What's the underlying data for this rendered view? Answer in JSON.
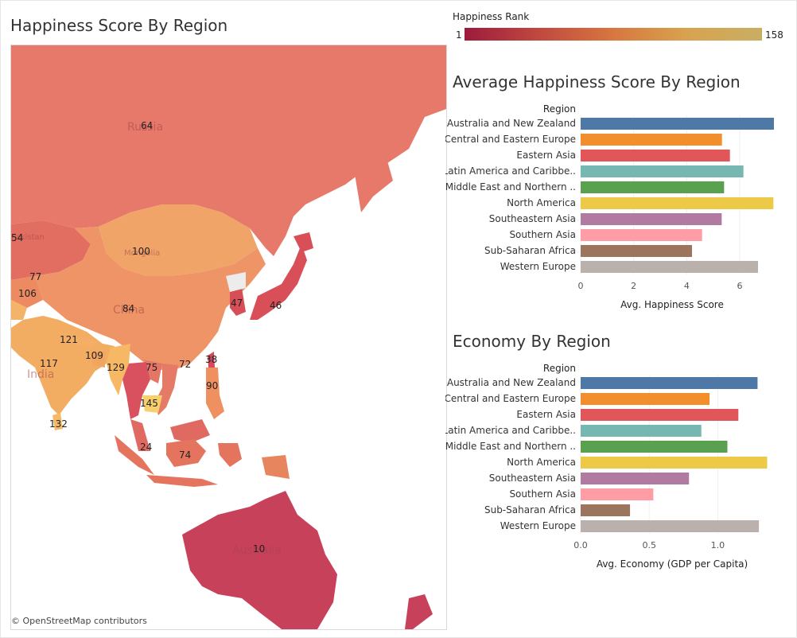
{
  "map": {
    "title": "Happiness Score By Region",
    "attribution": "© OpenStreetMap contributors",
    "country_labels": {
      "russia": "Russia",
      "china": "China",
      "india": "India",
      "australia": "Australia",
      "mongolia": "Mongolia",
      "pakistan": "Pakistan"
    },
    "rank_labels": {
      "russia": "64",
      "mongolia": "100",
      "china": "84",
      "kazakhstan": "54",
      "kyrgyzstan": "77",
      "tajikistan": "106",
      "nepal": "121",
      "india": "117",
      "bangladesh": "109",
      "myanmar": "129",
      "laos": "75",
      "vietnam": "72",
      "taiwan": "38",
      "philippines": "90",
      "cambodia": "145",
      "sri_lanka": "132",
      "malaysia": "24",
      "indonesia": "74",
      "south_korea": "47",
      "japan": "46",
      "australia": "10"
    }
  },
  "legend": {
    "title": "Happiness Rank",
    "min": "1",
    "max": "158",
    "colors": [
      "#9d1b3c",
      "#c0493f",
      "#d7773f",
      "#d8a350",
      "#c9ae62"
    ]
  },
  "chart_data": [
    {
      "type": "bar",
      "orientation": "horizontal",
      "title": "Average Happiness Score  By Region",
      "category_header": "Region",
      "categories": [
        "Australia and New Zealand",
        "Central and Eastern Europe",
        "Eastern Asia",
        "Latin America and Caribbe..",
        "Middle East and Northern ..",
        "North America",
        "Southeastern Asia",
        "Southern Asia",
        "Sub-Saharan Africa",
        "Western Europe"
      ],
      "values": [
        7.29,
        5.33,
        5.63,
        6.14,
        5.41,
        7.27,
        5.32,
        4.58,
        4.2,
        6.69
      ],
      "colors": [
        "#4e79a7",
        "#f28e2b",
        "#e15759",
        "#76b7b2",
        "#59a14f",
        "#edc948",
        "#b07aa1",
        "#ff9da7",
        "#9c755f",
        "#bab0ac"
      ],
      "xlabel": "Avg. Happiness Score",
      "xticks": [
        "0",
        "2",
        "4",
        "6"
      ],
      "xlim": [
        0,
        7.5
      ]
    },
    {
      "type": "bar",
      "orientation": "horizontal",
      "title": "Economy By Region",
      "category_header": "Region",
      "categories": [
        "Australia and New Zealand",
        "Central and Eastern Europe",
        "Eastern Asia",
        "Latin America and Caribbe..",
        "Middle East and Northern ..",
        "North America",
        "Southeastern Asia",
        "Southern Asia",
        "Sub-Saharan Africa",
        "Western Europe"
      ],
      "values": [
        1.29,
        0.94,
        1.15,
        0.88,
        1.07,
        1.36,
        0.79,
        0.53,
        0.36,
        1.3
      ],
      "colors": [
        "#4e79a7",
        "#f28e2b",
        "#e15759",
        "#76b7b2",
        "#59a14f",
        "#edc948",
        "#b07aa1",
        "#ff9da7",
        "#9c755f",
        "#bab0ac"
      ],
      "xlabel": "Avg. Economy (GDP per Capita)",
      "xticks": [
        "0.0",
        "0.5",
        "1.0"
      ],
      "xlim": [
        0,
        1.45
      ]
    }
  ]
}
